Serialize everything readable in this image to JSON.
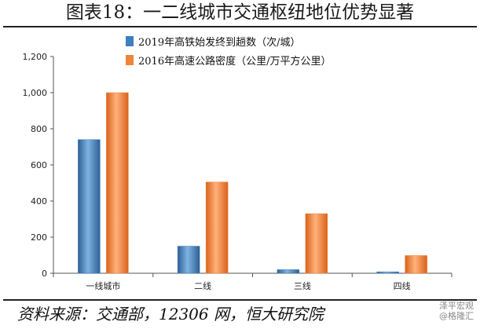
{
  "title": "图表18：一二线城市交通枢纽地位优势显著",
  "source": "资料来源：交通部，12306 网，恒大研究院",
  "watermark": {
    "line1": "泽平宏观",
    "line2": "@格隆汇"
  },
  "colors": {
    "series1": "#3f7fbf",
    "series2": "#f0843a"
  },
  "chart_data": {
    "type": "bar",
    "categories": [
      "一线城市",
      "二线",
      "三线",
      "四线"
    ],
    "series": [
      {
        "name": "2019年高铁始发终到趟数（次/城）",
        "values": [
          740,
          150,
          20,
          8
        ]
      },
      {
        "name": "2016年高速公路密度（公里/万平方公里）",
        "values": [
          1000,
          505,
          330,
          98
        ]
      }
    ],
    "yticks": [
      "0",
      "200",
      "400",
      "600",
      "800",
      "1,000",
      "1,200"
    ],
    "ylim": [
      0,
      1200
    ],
    "grid": false,
    "legend_position": "top-left"
  }
}
